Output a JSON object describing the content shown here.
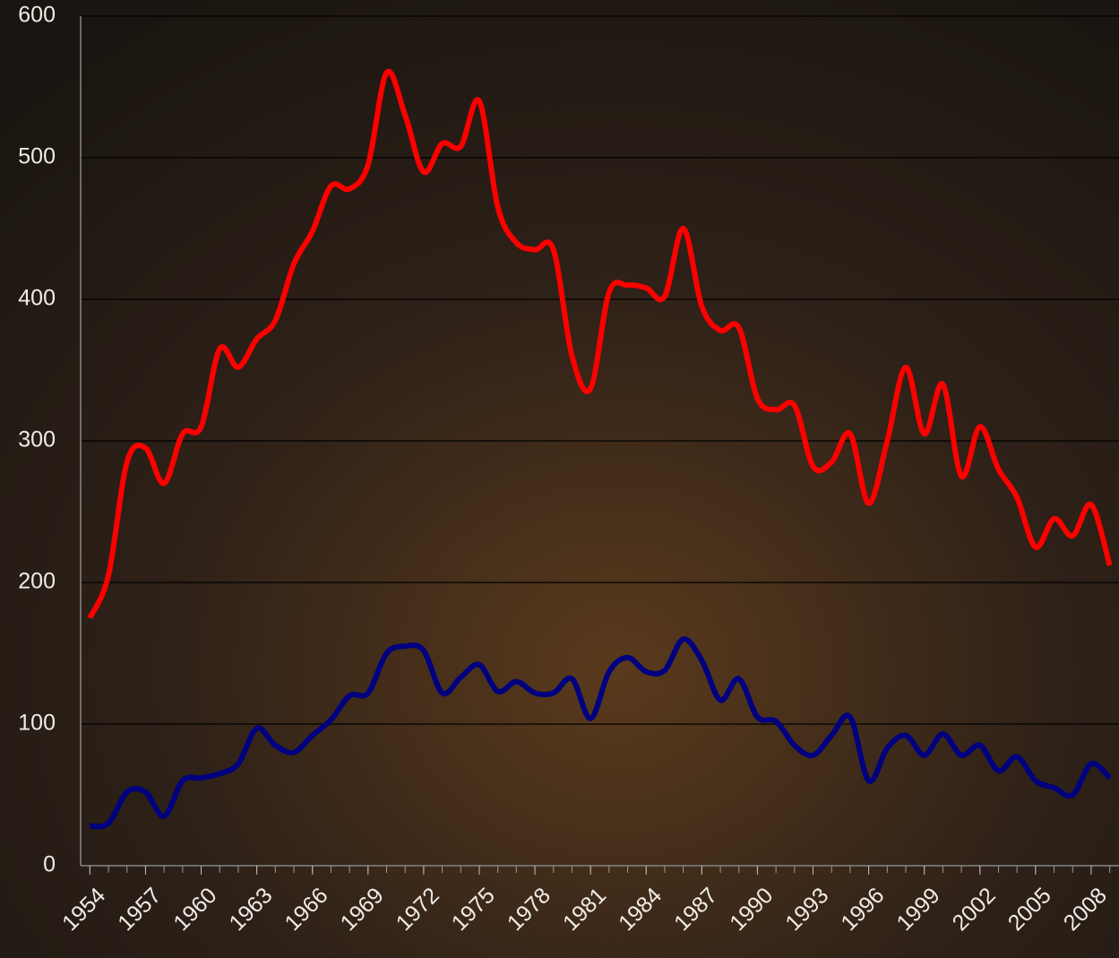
{
  "chart_data": {
    "type": "line",
    "x": [
      1954,
      1955,
      1956,
      1957,
      1958,
      1959,
      1960,
      1961,
      1962,
      1963,
      1964,
      1965,
      1966,
      1967,
      1968,
      1969,
      1970,
      1971,
      1972,
      1973,
      1974,
      1975,
      1976,
      1977,
      1978,
      1979,
      1980,
      1981,
      1982,
      1983,
      1984,
      1985,
      1986,
      1987,
      1988,
      1989,
      1990,
      1991,
      1992,
      1993,
      1994,
      1995,
      1996,
      1997,
      1998,
      1999,
      2000,
      2001,
      2002,
      2003,
      2004,
      2005,
      2006,
      2007,
      2008,
      2009
    ],
    "series": [
      {
        "color": "#ff0000",
        "values": [
          175,
          205,
          285,
          295,
          270,
          305,
          310,
          365,
          352,
          372,
          385,
          425,
          448,
          480,
          478,
          495,
          560,
          530,
          490,
          510,
          508,
          540,
          465,
          440,
          435,
          435,
          360,
          337,
          405,
          410,
          408,
          402,
          450,
          395,
          378,
          380,
          330,
          322,
          325,
          282,
          285,
          305,
          256,
          300,
          352,
          305,
          340,
          275,
          310,
          280,
          260,
          225,
          245,
          233,
          255,
          212
        ]
      },
      {
        "color": "#000080",
        "values": [
          28,
          30,
          52,
          52,
          35,
          60,
          62,
          65,
          72,
          97,
          85,
          80,
          92,
          103,
          120,
          122,
          150,
          155,
          152,
          122,
          133,
          142,
          123,
          130,
          122,
          122,
          132,
          104,
          137,
          147,
          137,
          138,
          160,
          145,
          117,
          132,
          105,
          102,
          85,
          78,
          92,
          105,
          60,
          83,
          92,
          78,
          93,
          78,
          85,
          67,
          77,
          60,
          55,
          50,
          72,
          62
        ]
      }
    ],
    "xlim": [
      1953.5,
      2009.5
    ],
    "xticks": [
      1954,
      1957,
      1960,
      1963,
      1966,
      1969,
      1972,
      1975,
      1978,
      1981,
      1984,
      1987,
      1990,
      1993,
      1996,
      1999,
      2002,
      2005,
      2008
    ],
    "ylim": [
      0,
      600
    ],
    "yticks": [
      0,
      100,
      200,
      300,
      400,
      500,
      600
    ],
    "grid": true
  }
}
